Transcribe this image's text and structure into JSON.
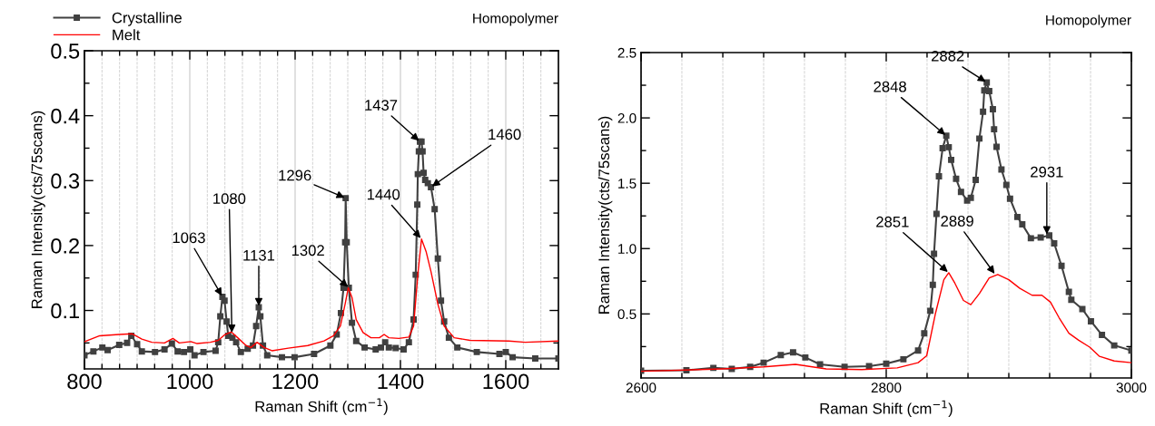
{
  "chart_data": [
    {
      "type": "line",
      "title": "Homopolymer",
      "xlabel": "Raman Shift (cm$^{−1}$)",
      "ylabel": "Raman Intensity(cts/75scans)",
      "xlim": [
        800,
        1700
      ],
      "ylim": [
        0.01,
        0.5
      ],
      "xticks": [
        800,
        {
          "value": 833.3,
          "label": null
        },
        {
          "value": 866.7,
          "label": null
        },
        {
          "value": 900,
          "label": null
        },
        {
          "value": 933.3,
          "label": null
        },
        {
          "value": 966.7,
          "label": null
        },
        1000,
        {
          "value": 1033.3,
          "label": null
        },
        {
          "value": 1066.7,
          "label": null
        },
        {
          "value": 1100,
          "label": null
        },
        {
          "value": 1133.3,
          "label": null
        },
        {
          "value": 1166.7,
          "label": null
        },
        1200,
        {
          "value": 1233.3,
          "label": null
        },
        {
          "value": 1266.7,
          "label": null
        },
        {
          "value": 1300,
          "label": null
        },
        {
          "value": 1333.3,
          "label": null
        },
        {
          "value": 1366.7,
          "label": null
        },
        1400,
        {
          "value": 1433.3,
          "label": null
        },
        {
          "value": 1466.7,
          "label": null
        },
        {
          "value": 1500,
          "label": null
        },
        {
          "value": 1533.3,
          "label": null
        },
        {
          "value": 1566.7,
          "label": null
        },
        1600,
        {
          "value": 1633.3,
          "label": null
        },
        {
          "value": 1666.7,
          "label": null
        }
      ],
      "yticks": [
        {
          "value": 0.05,
          "label": null
        },
        0.1,
        {
          "value": 0.15,
          "label": null
        },
        0.2,
        {
          "value": 0.25,
          "label": null
        },
        0.3,
        {
          "value": 0.35,
          "label": null
        },
        0.4,
        {
          "value": 0.45,
          "label": null
        },
        0.5
      ],
      "grid": "x",
      "legend": "top left",
      "series": [
        {
          "name": "Crystalline",
          "color": "#404040",
          "marker": "square",
          "line_style": "solid",
          "x": [
            800,
            817,
            834,
            844,
            866,
            881,
            889,
            900,
            909,
            934,
            952,
            966,
            977,
            989,
            1001,
            1009,
            1026,
            1049,
            1054,
            1058,
            1062,
            1066,
            1070,
            1073,
            1081,
            1088,
            1097,
            1110,
            1120,
            1126,
            1131,
            1134,
            1139,
            1147,
            1175,
            1199,
            1236,
            1267,
            1279,
            1287,
            1292,
            1295,
            1296,
            1298,
            1302,
            1308,
            1316,
            1332,
            1353,
            1363,
            1371,
            1378,
            1391,
            1406,
            1416,
            1425,
            1429,
            1432,
            1433,
            1435,
            1437,
            1440,
            1442,
            1444,
            1447,
            1452,
            1458,
            1465,
            1471,
            1477,
            1483,
            1492,
            1508,
            1545,
            1588,
            1600,
            1613,
            1656,
            1700
          ],
          "values": [
            0.031,
            0.037,
            0.043,
            0.039,
            0.047,
            0.05,
            0.061,
            0.048,
            0.037,
            0.036,
            0.04,
            0.049,
            0.037,
            0.036,
            0.04,
            0.031,
            0.036,
            0.038,
            0.051,
            0.091,
            0.121,
            0.115,
            0.083,
            0.061,
            0.058,
            0.051,
            0.036,
            0.041,
            0.046,
            0.076,
            0.105,
            0.091,
            0.046,
            0.031,
            0.028,
            0.028,
            0.033,
            0.046,
            0.063,
            0.096,
            0.135,
            0.205,
            0.273,
            0.205,
            0.135,
            0.081,
            0.053,
            0.043,
            0.04,
            0.043,
            0.051,
            0.043,
            0.042,
            0.04,
            0.051,
            0.086,
            0.155,
            0.263,
            0.31,
            0.345,
            0.36,
            0.36,
            0.345,
            0.312,
            0.301,
            0.296,
            0.29,
            0.256,
            0.18,
            0.115,
            0.083,
            0.058,
            0.043,
            0.036,
            0.033,
            0.036,
            0.028,
            0.026,
            0.026
          ]
        },
        {
          "name": "Melt",
          "color": "#ff0000",
          "marker": "none",
          "line_style": "solid",
          "x": [
            800,
            829,
            866,
            891,
            909,
            928,
            952,
            968,
            980,
            1002,
            1014,
            1039,
            1054,
            1067,
            1079,
            1091,
            1107,
            1116,
            1128,
            1141,
            1156,
            1187,
            1224,
            1255,
            1273,
            1286,
            1295,
            1301,
            1308,
            1316,
            1329,
            1344,
            1360,
            1369,
            1378,
            1397,
            1416,
            1425,
            1433,
            1440,
            1449,
            1458,
            1471,
            1483,
            1502,
            1532,
            1606,
            1637,
            1700
          ],
          "values": [
            0.052,
            0.061,
            0.063,
            0.064,
            0.056,
            0.051,
            0.05,
            0.057,
            0.05,
            0.052,
            0.049,
            0.051,
            0.054,
            0.063,
            0.067,
            0.058,
            0.046,
            0.043,
            0.051,
            0.043,
            0.038,
            0.042,
            0.046,
            0.053,
            0.061,
            0.076,
            0.11,
            0.135,
            0.12,
            0.086,
            0.066,
            0.058,
            0.058,
            0.063,
            0.058,
            0.057,
            0.059,
            0.076,
            0.155,
            0.21,
            0.19,
            0.16,
            0.11,
            0.076,
            0.058,
            0.054,
            0.053,
            0.051,
            0.053
          ]
        }
      ],
      "annotations": [
        {
          "text": "1063",
          "x": 1062,
          "y": 0.121
        },
        {
          "text": "1080",
          "x": 1080,
          "y": 0.064
        },
        {
          "text": "1131",
          "x": 1131,
          "y": 0.105
        },
        {
          "text": "1302",
          "x": 1302,
          "y": 0.135
        },
        {
          "text": "1296",
          "x": 1296,
          "y": 0.273
        },
        {
          "text": "1437",
          "x": 1437,
          "y": 0.36
        },
        {
          "text": "1460",
          "x": 1458,
          "y": 0.29
        },
        {
          "text": "1440",
          "x": 1440,
          "y": 0.21
        }
      ]
    },
    {
      "type": "line",
      "title": "Homopolymer",
      "xlabel": "Raman Shift (cm$^{−1}$)",
      "ylabel": "Raman Intensity(cts/75scans)",
      "xlim": [
        2600,
        3000
      ],
      "ylim": [
        0.01,
        2.5
      ],
      "xticks": [
        2600,
        {
          "value": 2633.3,
          "label": null
        },
        {
          "value": 2666.7,
          "label": null
        },
        {
          "value": 2700,
          "label": null
        },
        {
          "value": 2733.3,
          "label": null
        },
        {
          "value": 2766.7,
          "label": null
        },
        2800,
        {
          "value": 2833.3,
          "label": null
        },
        {
          "value": 2866.7,
          "label": null
        },
        {
          "value": 2900,
          "label": null
        },
        {
          "value": 2933.3,
          "label": null
        },
        {
          "value": 2966.7,
          "label": null
        },
        3000
      ],
      "yticks": [
        {
          "value": 0.25,
          "label": null
        },
        0.5,
        {
          "value": 0.75,
          "label": null
        },
        {
          "value": 1.0,
          "label": "1.0"
        },
        {
          "value": 1.25,
          "label": null
        },
        1.5,
        {
          "value": 1.75,
          "label": null
        },
        {
          "value": 2.0,
          "label": "2.0"
        },
        {
          "value": 2.25,
          "label": null
        },
        2.5
      ],
      "grid": "x",
      "series": [
        {
          "color": "#404040",
          "marker": "square",
          "line_style": "solid",
          "x": [
            2600,
            2637,
            2659,
            2674,
            2689,
            2700,
            2714,
            2724,
            2734,
            2746,
            2766,
            2786,
            2800,
            2814,
            2826,
            2831,
            2836,
            2838,
            2839,
            2841,
            2843,
            2846,
            2849,
            2851,
            2853,
            2857,
            2861,
            2866,
            2869,
            2873,
            2876,
            2879,
            2880,
            2882,
            2884,
            2887,
            2888,
            2890,
            2894,
            2898,
            2901,
            2907,
            2911,
            2918,
            2926,
            2933,
            2937,
            2943,
            2949,
            2951,
            2960,
            2967,
            2976,
            2986,
            3000
          ],
          "values": [
            0.066,
            0.069,
            0.087,
            0.079,
            0.095,
            0.127,
            0.185,
            0.206,
            0.167,
            0.114,
            0.095,
            0.1,
            0.119,
            0.153,
            0.22,
            0.352,
            0.524,
            0.722,
            0.96,
            1.265,
            1.553,
            1.768,
            1.863,
            1.776,
            1.679,
            1.534,
            1.434,
            1.368,
            1.389,
            1.526,
            1.842,
            2.047,
            2.211,
            2.271,
            2.205,
            2.066,
            1.913,
            1.779,
            1.605,
            1.487,
            1.382,
            1.242,
            1.185,
            1.079,
            1.085,
            1.101,
            1.04,
            0.868,
            0.669,
            0.608,
            0.537,
            0.444,
            0.339,
            0.259,
            0.22
          ]
        },
        {
          "color": "#ff0000",
          "marker": "none",
          "line_style": "solid",
          "x": [
            2600,
            2666,
            2700,
            2726,
            2751,
            2780,
            2809,
            2826,
            2833,
            2840,
            2847,
            2851,
            2856,
            2863,
            2869,
            2876,
            2884,
            2891,
            2900,
            2909,
            2919,
            2927,
            2934,
            2941,
            2949,
            2957,
            2966,
            2974,
            2986,
            3000
          ],
          "values": [
            0.061,
            0.079,
            0.095,
            0.114,
            0.079,
            0.074,
            0.087,
            0.127,
            0.18,
            0.497,
            0.762,
            0.815,
            0.735,
            0.603,
            0.571,
            0.656,
            0.775,
            0.802,
            0.762,
            0.696,
            0.643,
            0.643,
            0.59,
            0.471,
            0.352,
            0.299,
            0.246,
            0.175,
            0.14,
            0.127
          ]
        }
      ],
      "annotations": [
        {
          "text": "2848",
          "x": 2849,
          "y": 1.863
        },
        {
          "text": "2882",
          "x": 2882,
          "y": 2.271
        },
        {
          "text": "2931",
          "x": 2931,
          "y": 1.1
        },
        {
          "text": "2851",
          "x": 2851,
          "y": 0.815
        },
        {
          "text": "2889",
          "x": 2889,
          "y": 0.8
        }
      ]
    }
  ]
}
